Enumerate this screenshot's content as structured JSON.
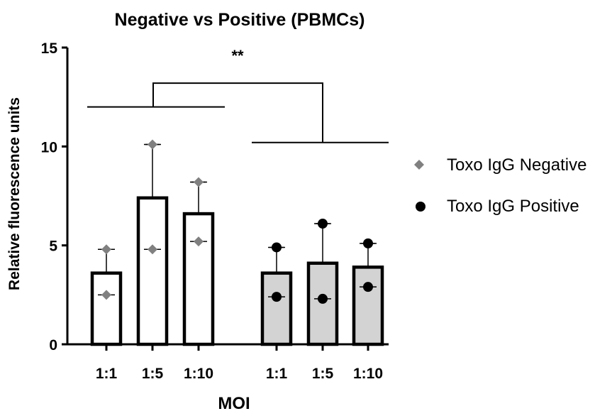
{
  "chart_data": {
    "type": "bar",
    "title": "Negative vs Positive (PBMCs)",
    "xlabel": "MOI",
    "ylabel": "Relative fluorescence units",
    "ylim": [
      0,
      15
    ],
    "yticks": [
      0,
      5,
      10,
      15
    ],
    "categories": [
      "1:1",
      "1:5",
      "1:10"
    ],
    "series": [
      {
        "name": "Toxo IgG Negative",
        "marker": "diamond",
        "marker_color": "#808080",
        "bar_fill": "#ffffff",
        "values": [
          3.6,
          7.4,
          6.6
        ],
        "error_upper": [
          4.8,
          10.1,
          8.2
        ],
        "points": [
          [
            4.8,
            2.5
          ],
          [
            10.1,
            4.8
          ],
          [
            8.2,
            5.2
          ]
        ]
      },
      {
        "name": "Toxo IgG Positive",
        "marker": "circle",
        "marker_color": "#000000",
        "bar_fill": "#d3d3d3",
        "values": [
          3.6,
          4.1,
          3.9
        ],
        "error_upper": [
          4.9,
          6.1,
          5.1
        ],
        "points": [
          [
            4.9,
            2.4
          ],
          [
            6.1,
            2.3
          ],
          [
            5.1,
            2.9
          ]
        ]
      }
    ],
    "significance": {
      "label": "**",
      "group1_bracket_y": 12,
      "group2_bracket_y": 10.2,
      "connector_y": 13.2
    },
    "legend_position": "right",
    "grid": false
  }
}
